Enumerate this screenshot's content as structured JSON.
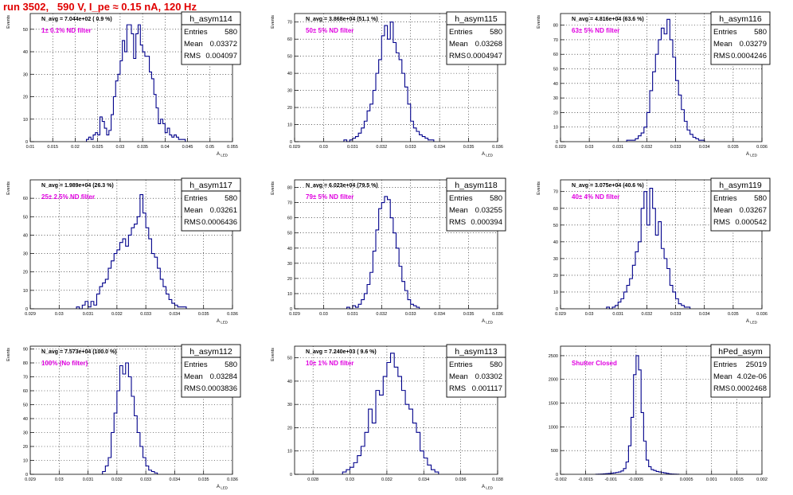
{
  "header": {
    "title": "run 3502,   590 V, I_pe ≈ 0.15 nA, 120 Hz"
  },
  "colors": {
    "title": "#e00000",
    "histogram": "#00008b",
    "filter_text": "#e000e0",
    "frame": "#000000"
  },
  "stat_labels": {
    "entries": "Entries",
    "mean": "Mean",
    "rms": "RMS"
  },
  "chart_data": [
    {
      "type": "histogram",
      "name": "h_asym114",
      "nline": "N_avg = 7.044e+02 ( 0.9 %)",
      "filter": "1± 0.1% ND filter",
      "ylabel": "Events",
      "xlabel": "A_LED",
      "entries": "580",
      "mean": "0.03372",
      "rms": "0.004097",
      "xlim": [
        0.01,
        0.055
      ],
      "ylim": [
        0,
        57
      ],
      "xticks": [
        "0.01",
        "0.015",
        "0.02",
        "0.025",
        "0.03",
        "0.035",
        "0.04",
        "0.045",
        "0.05",
        "0.055"
      ],
      "yticks": [
        0,
        10,
        20,
        30,
        40,
        50
      ],
      "bin_width": 0.0005,
      "bins_x0": 0.0225,
      "counts": [
        1,
        2,
        1,
        3,
        4,
        3,
        11,
        9,
        6,
        3,
        5,
        12,
        20,
        27,
        30,
        36,
        45,
        40,
        52,
        52,
        48,
        37,
        48,
        52,
        43,
        40,
        38,
        38,
        31,
        28,
        21,
        15,
        8,
        10,
        8,
        4,
        6,
        3,
        2,
        3,
        2,
        1,
        1,
        1
      ]
    },
    {
      "type": "histogram",
      "name": "h_asym115",
      "nline": "N_avg = 3.868e+04 (51.1 %)",
      "filter": "50± 5% ND filter",
      "ylabel": "Events",
      "xlabel": "A_LED",
      "entries": "580",
      "mean": "0.03268",
      "rms": "0.0004947",
      "xlim": [
        0.029,
        0.036
      ],
      "ylim": [
        0,
        75
      ],
      "xticks": [
        "0.029",
        "0.03",
        "0.031",
        "0.032",
        "0.033",
        "0.034",
        "0.035",
        "0.036"
      ],
      "yticks": [
        0,
        10,
        20,
        30,
        40,
        50,
        60,
        70
      ],
      "bin_width": 0.0001,
      "bins_x0": 0.0307,
      "counts": [
        1,
        0,
        1,
        2,
        3,
        5,
        8,
        12,
        18,
        22,
        30,
        40,
        48,
        62,
        68,
        60,
        70,
        58,
        52,
        48,
        40,
        32,
        22,
        12,
        8,
        6,
        4,
        3,
        2,
        1,
        1
      ]
    },
    {
      "type": "histogram",
      "name": "h_asym116",
      "nline": "N_avg = 4.816e+04 (63.6 %)",
      "filter": "63± 5% ND filter",
      "ylabel": "Events",
      "xlabel": "A_LED",
      "entries": "580",
      "mean": "0.03279",
      "rms": "0.0004246",
      "xlim": [
        0.029,
        0.036
      ],
      "ylim": [
        0,
        88
      ],
      "xticks": [
        "0.029",
        "0.03",
        "0.031",
        "0.032",
        "0.033",
        "0.034",
        "0.035",
        "0.036"
      ],
      "yticks": [
        0,
        10,
        20,
        30,
        40,
        50,
        60,
        70,
        80
      ],
      "bin_width": 0.0001,
      "bins_x0": 0.0313,
      "counts": [
        1,
        1,
        1,
        2,
        4,
        6,
        10,
        20,
        35,
        48,
        60,
        70,
        78,
        74,
        84,
        70,
        58,
        42,
        32,
        22,
        14,
        8,
        5,
        3,
        2,
        1,
        1
      ]
    },
    {
      "type": "histogram",
      "name": "h_asym117",
      "nline": "N_avg = 1.989e+04 (26.3 %)",
      "filter": "25± 2.5% ND filter",
      "ylabel": "Events",
      "xlabel": "A_LED",
      "entries": "580",
      "mean": "0.03261",
      "rms": "0.0006436",
      "xlim": [
        0.029,
        0.036
      ],
      "ylim": [
        0,
        70
      ],
      "xticks": [
        "0.029",
        "0.03",
        "0.031",
        "0.032",
        "0.033",
        "0.034",
        "0.035",
        "0.036"
      ],
      "yticks": [
        0,
        10,
        20,
        30,
        40,
        50,
        60
      ],
      "bin_width": 0.0001,
      "bins_x0": 0.0306,
      "counts": [
        1,
        0,
        2,
        4,
        1,
        4,
        2,
        8,
        12,
        14,
        16,
        22,
        26,
        30,
        32,
        36,
        38,
        34,
        40,
        44,
        46,
        50,
        62,
        52,
        44,
        38,
        30,
        28,
        22,
        16,
        12,
        8,
        5,
        3,
        2,
        1,
        1,
        1
      ]
    },
    {
      "type": "histogram",
      "name": "h_asym118",
      "nline": "N_avg = 6.023e+04 (79.5 %)",
      "filter": "79± 5% ND filter",
      "ylabel": "Events",
      "xlabel": "A_LED",
      "entries": "580",
      "mean": "0.03255",
      "rms": "0.000394",
      "xlim": [
        0.029,
        0.036
      ],
      "ylim": [
        0,
        85
      ],
      "xticks": [
        "0.029",
        "0.03",
        "0.031",
        "0.032",
        "0.033",
        "0.034",
        "0.035",
        "0.036"
      ],
      "yticks": [
        0,
        10,
        20,
        30,
        40,
        50,
        60,
        70,
        80
      ],
      "bin_width": 0.0001,
      "bins_x0": 0.0308,
      "counts": [
        1,
        0,
        2,
        1,
        3,
        6,
        10,
        16,
        24,
        38,
        52,
        66,
        70,
        74,
        72,
        60,
        50,
        40,
        28,
        18,
        12,
        6,
        3,
        2,
        1
      ]
    },
    {
      "type": "histogram",
      "name": "h_asym119",
      "nline": "N_avg = 3.075e+04 (40.6 %)",
      "filter": "40± 4% ND filter",
      "ylabel": "Events",
      "xlabel": "A_LED",
      "entries": "580",
      "mean": "0.03267",
      "rms": "0.000542",
      "xlim": [
        0.029,
        0.036
      ],
      "ylim": [
        0,
        77
      ],
      "xticks": [
        "0.029",
        "0.03",
        "0.031",
        "0.032",
        "0.033",
        "0.034",
        "0.035",
        "0.036"
      ],
      "yticks": [
        0,
        10,
        20,
        30,
        40,
        50,
        60,
        70
      ],
      "bin_width": 0.0001,
      "bins_x0": 0.0306,
      "counts": [
        1,
        0,
        1,
        2,
        4,
        6,
        10,
        14,
        18,
        26,
        34,
        40,
        60,
        70,
        50,
        72,
        60,
        44,
        52,
        36,
        30,
        24,
        14,
        10,
        6,
        3,
        2,
        1,
        1
      ]
    },
    {
      "type": "histogram",
      "name": "h_asym112",
      "nline": "N_avg = 7.573e+04 (100.0 %)",
      "filter": "100% (No filter)",
      "ylabel": "Events",
      "xlabel": "A_LED",
      "entries": "580",
      "mean": "0.03284",
      "rms": "0.0003836",
      "xlim": [
        0.029,
        0.036
      ],
      "ylim": [
        0,
        92
      ],
      "xticks": [
        "0.029",
        "0.03",
        "0.031",
        "0.032",
        "0.033",
        "0.034",
        "0.035",
        "0.036"
      ],
      "yticks": [
        0,
        10,
        20,
        30,
        40,
        50,
        60,
        70,
        80,
        90
      ],
      "bin_width": 0.0001,
      "bins_x0": 0.0315,
      "counts": [
        2,
        6,
        12,
        30,
        44,
        60,
        78,
        72,
        80,
        70,
        56,
        42,
        30,
        20,
        12,
        6,
        3,
        2,
        1
      ]
    },
    {
      "type": "histogram",
      "name": "h_asym113",
      "nline": "N_avg = 7.240e+03 ( 9.6 %)",
      "filter": "10± 1% ND filter",
      "ylabel": "Events",
      "xlabel": "A_LED",
      "entries": "580",
      "mean": "0.03302",
      "rms": "0.001117",
      "xlim": [
        0.027,
        0.038
      ],
      "ylim": [
        0,
        55
      ],
      "xticks": [
        "0.028",
        "0.03",
        "0.032",
        "0.034",
        "0.036",
        "0.038"
      ],
      "yticks": [
        0,
        10,
        20,
        30,
        40,
        50
      ],
      "bin_width": 0.0002,
      "bins_x0": 0.0296,
      "counts": [
        1,
        2,
        3,
        5,
        8,
        12,
        18,
        28,
        22,
        36,
        34,
        42,
        48,
        52,
        46,
        42,
        36,
        30,
        28,
        22,
        18,
        10,
        7,
        4,
        2,
        1
      ]
    },
    {
      "type": "histogram",
      "name": "hPed_asym",
      "nline": "",
      "filter": "Shutter Closed",
      "ylabel": "",
      "xlabel": "",
      "entries": "25019",
      "mean": "4.02e-06",
      "rms": "0.0002468",
      "xlim": [
        -0.002,
        0.002
      ],
      "ylim": [
        0,
        2700
      ],
      "xticks": [
        "-0.002",
        "-0.0015",
        "-0.001",
        "-0.0005",
        "0",
        "0.0005",
        "0.001",
        "0.0015",
        "0.002"
      ],
      "yticks": [
        0,
        500,
        1000,
        1500,
        2000,
        2500
      ],
      "bin_width": 5e-05,
      "bins_x0": -0.0013,
      "counts": [
        2,
        4,
        6,
        10,
        14,
        18,
        24,
        30,
        40,
        50,
        70,
        120,
        260,
        600,
        1200,
        2100,
        2500,
        2200,
        1300,
        700,
        300,
        160,
        100,
        80,
        60,
        50,
        40,
        30,
        20,
        10,
        6,
        4,
        2
      ]
    }
  ]
}
